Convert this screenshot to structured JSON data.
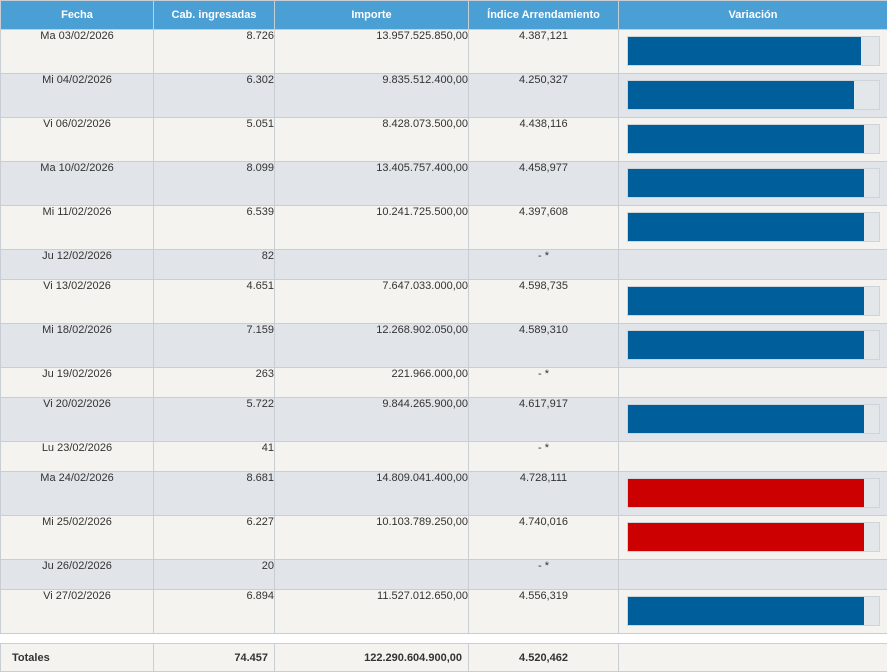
{
  "headers": {
    "fecha": "Fecha",
    "cab": "Cab. ingresadas",
    "importe": "Importe",
    "indice": "Índice Arrendamiento",
    "variacion": "Variación"
  },
  "colors": {
    "header_bg": "#4a9fd5",
    "bar_blue": "#005e9a",
    "bar_red": "#cc0000",
    "row_odd": "#f4f3ef",
    "row_even": "#e1e4e8"
  },
  "rows": [
    {
      "fecha": "Ma 03/02/2026",
      "cab": "8.726",
      "importe": "13.957.525.850,00",
      "indice": "4.387,121",
      "bar": "blue",
      "fill": 0.93
    },
    {
      "fecha": "Mi 04/02/2026",
      "cab": "6.302",
      "importe": "9.835.512.400,00",
      "indice": "4.250,327",
      "bar": "blue",
      "fill": 0.9
    },
    {
      "fecha": "Vi 06/02/2026",
      "cab": "5.051",
      "importe": "8.428.073.500,00",
      "indice": "4.438,116",
      "bar": "blue",
      "fill": 0.94
    },
    {
      "fecha": "Ma 10/02/2026",
      "cab": "8.099",
      "importe": "13.405.757.400,00",
      "indice": "4.458,977",
      "bar": "blue",
      "fill": 0.94
    },
    {
      "fecha": "Mi 11/02/2026",
      "cab": "6.539",
      "importe": "10.241.725.500,00",
      "indice": "4.397,608",
      "bar": "blue",
      "fill": 0.94
    },
    {
      "fecha": "Ju 12/02/2026",
      "cab": "82",
      "importe": "",
      "indice": "- *",
      "bar": "none",
      "fill": 0
    },
    {
      "fecha": "Vi 13/02/2026",
      "cab": "4.651",
      "importe": "7.647.033.000,00",
      "indice": "4.598,735",
      "bar": "blue",
      "fill": 0.94
    },
    {
      "fecha": "Mi 18/02/2026",
      "cab": "7.159",
      "importe": "12.268.902.050,00",
      "indice": "4.589,310",
      "bar": "blue",
      "fill": 0.94
    },
    {
      "fecha": "Ju 19/02/2026",
      "cab": "263",
      "importe": "221.966.000,00",
      "indice": "- *",
      "bar": "none",
      "fill": 0
    },
    {
      "fecha": "Vi 20/02/2026",
      "cab": "5.722",
      "importe": "9.844.265.900,00",
      "indice": "4.617,917",
      "bar": "blue",
      "fill": 0.94
    },
    {
      "fecha": "Lu 23/02/2026",
      "cab": "41",
      "importe": "",
      "indice": "- *",
      "bar": "none",
      "fill": 0
    },
    {
      "fecha": "Ma 24/02/2026",
      "cab": "8.681",
      "importe": "14.809.041.400,00",
      "indice": "4.728,111",
      "bar": "red",
      "fill": 0.94
    },
    {
      "fecha": "Mi 25/02/2026",
      "cab": "6.227",
      "importe": "10.103.789.250,00",
      "indice": "4.740,016",
      "bar": "red",
      "fill": 0.94
    },
    {
      "fecha": "Ju 26/02/2026",
      "cab": "20",
      "importe": "",
      "indice": "- *",
      "bar": "none",
      "fill": 0
    },
    {
      "fecha": "Vi 27/02/2026",
      "cab": "6.894",
      "importe": "11.527.012.650,00",
      "indice": "4.556,319",
      "bar": "blue",
      "fill": 0.94
    }
  ],
  "totals": {
    "label": "Totales",
    "cab": "74.457",
    "importe": "122.290.604.900,00",
    "indice": "4.520,462"
  }
}
